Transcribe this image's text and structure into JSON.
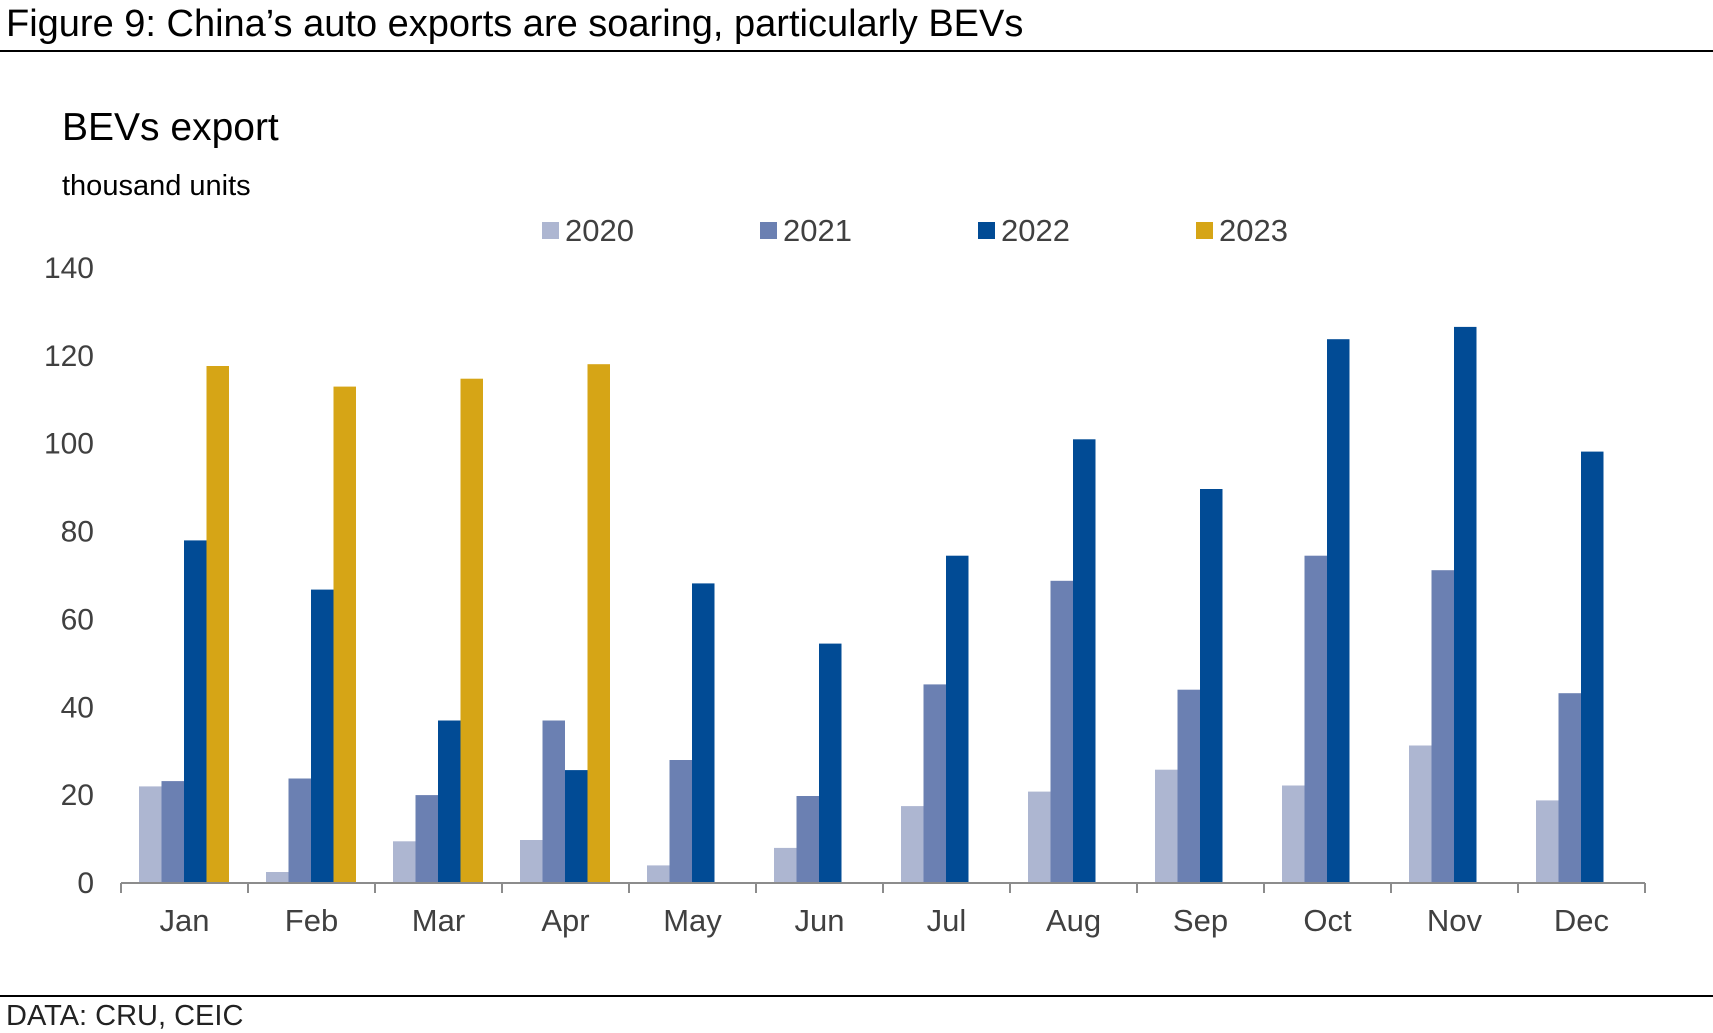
{
  "figure": {
    "title": "Figure 9: China’s auto exports are soaring, particularly BEVs",
    "source": "DATA: CRU, CEIC"
  },
  "chart_data": {
    "type": "bar",
    "title": "BEVs export",
    "subtitle": "thousand units",
    "xlabel": "",
    "ylabel": "",
    "ylim": [
      0,
      140
    ],
    "yticks": [
      0,
      20,
      40,
      60,
      80,
      100,
      120,
      140
    ],
    "grid": false,
    "legend_position": "top",
    "categories": [
      "Jan",
      "Feb",
      "Mar",
      "Apr",
      "May",
      "Jun",
      "Jul",
      "Aug",
      "Sep",
      "Oct",
      "Nov",
      "Dec"
    ],
    "series": [
      {
        "name": "2020",
        "color": "#adb6d1",
        "values": [
          22,
          2.5,
          9.5,
          9.8,
          4,
          8,
          17.5,
          20.8,
          25.8,
          22.2,
          31.3,
          18.8
        ]
      },
      {
        "name": "2021",
        "color": "#6b80b2",
        "values": [
          23.2,
          23.8,
          20,
          37,
          28,
          19.8,
          45.2,
          68.8,
          44,
          74.5,
          71.2,
          43.2
        ]
      },
      {
        "name": "2022",
        "color": "#014b95",
        "values": [
          78,
          66.8,
          37,
          25.7,
          68.2,
          54.5,
          74.5,
          101,
          89.7,
          123.8,
          126.6,
          98.2
        ]
      },
      {
        "name": "2023",
        "color": "#d6a516",
        "values": [
          117.7,
          113,
          114.8,
          118.1,
          null,
          null,
          null,
          null,
          null,
          null,
          null,
          null
        ]
      }
    ]
  }
}
